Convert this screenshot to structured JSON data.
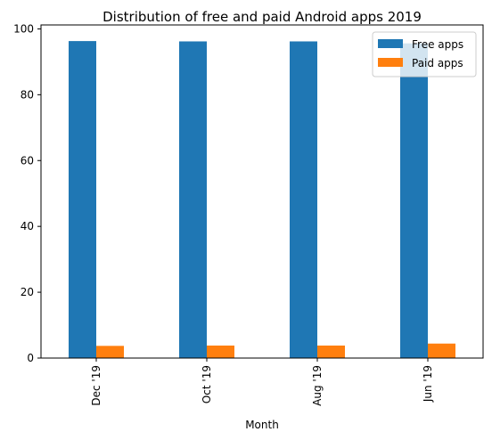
{
  "chart_data": {
    "type": "bar",
    "title": "Distribution of free and paid Android apps 2019",
    "xlabel": "Month",
    "ylabel": "",
    "categories": [
      "Dec '19",
      "Oct '19",
      "Aug '19",
      "Jun '19"
    ],
    "series": [
      {
        "name": "Free apps",
        "color": "#1f77b4",
        "values": [
          96.3,
          96.2,
          96.2,
          95.6
        ]
      },
      {
        "name": "Paid apps",
        "color": "#ff7f0e",
        "values": [
          3.7,
          3.8,
          3.8,
          4.4
        ]
      }
    ],
    "ylim": [
      0,
      101.2
    ],
    "yticks": [
      0,
      20,
      40,
      60,
      80,
      100
    ],
    "grid": false,
    "legend_position": "top-right"
  }
}
